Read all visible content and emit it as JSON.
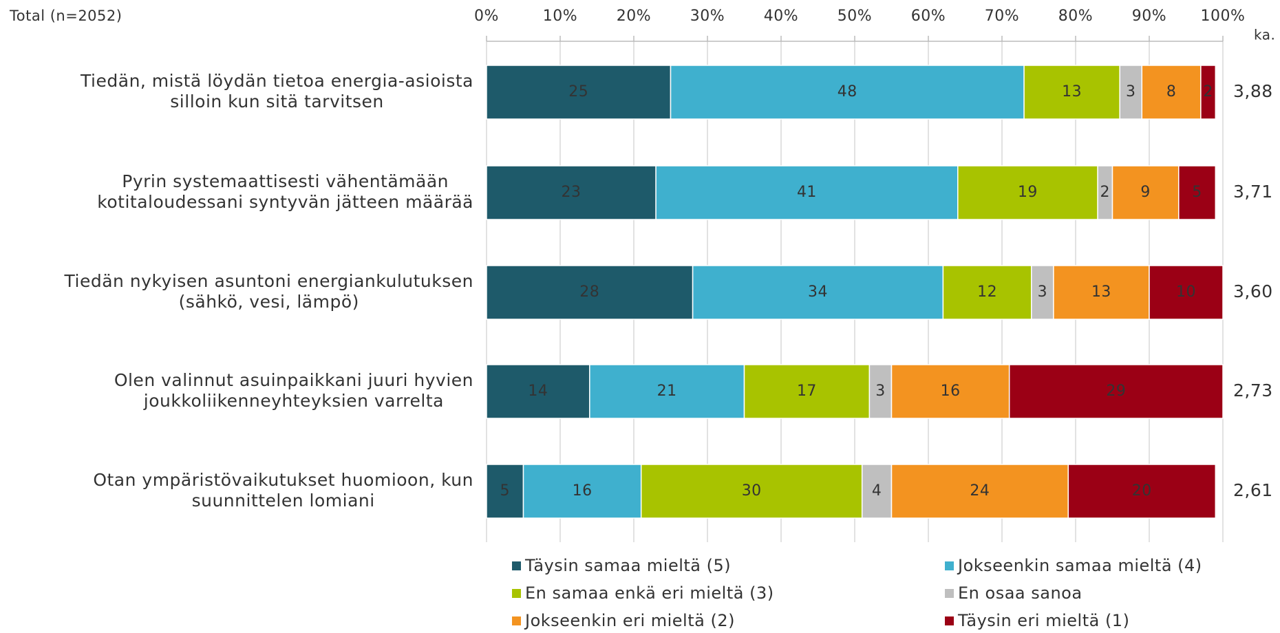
{
  "chart_data": {
    "type": "stacked-bar-horizontal",
    "subtitle": "Total (n=2052)",
    "categories": [
      "Tiedän, mistä löydän tietoa energia-asioista\nsilloin kun sitä tarvitsen",
      "Pyrin systemaattisesti vähentämään\nkotitaloudessani syntyvän jätteen määrää",
      "Tiedän nykyisen asuntoni energiankulutuksen\n(sähkö, vesi, lämpö)",
      "Olen valinnut asuinpaikkani juuri hyvien\njoukkoliikenneyhteyksien varrelta",
      "Otan ympäristövaikutukset huomioon, kun\nsuunnittelen lomiani"
    ],
    "series": [
      {
        "name": "Täysin samaa mieltä (5)",
        "color": "#1e5a6a",
        "values": [
          25,
          23,
          28,
          14,
          5
        ]
      },
      {
        "name": "Jokseenkin samaa mieltä (4)",
        "color": "#3fb0ce",
        "values": [
          48,
          41,
          34,
          21,
          16
        ]
      },
      {
        "name": "En samaa enkä eri mieltä (3)",
        "color": "#a8c300",
        "values": [
          13,
          19,
          12,
          17,
          30
        ]
      },
      {
        "name": "En osaa sanoa",
        "color": "#bfbfbf",
        "values": [
          3,
          2,
          3,
          3,
          4
        ]
      },
      {
        "name": "Jokseenkin eri mieltä (2)",
        "color": "#f39320",
        "values": [
          8,
          9,
          13,
          16,
          24
        ]
      },
      {
        "name": "Täysin eri mieltä (1)",
        "color": "#9b0015",
        "values": [
          2,
          5,
          10,
          29,
          20
        ]
      }
    ],
    "xlim": [
      0,
      100
    ],
    "xticks": [
      {
        "value": 0,
        "label": "0%"
      },
      {
        "value": 10,
        "label": "10%"
      },
      {
        "value": 20,
        "label": "20%"
      },
      {
        "value": 30,
        "label": "30%"
      },
      {
        "value": 40,
        "label": "40%"
      },
      {
        "value": 50,
        "label": "50%"
      },
      {
        "value": 60,
        "label": "60%"
      },
      {
        "value": 70,
        "label": "70%"
      },
      {
        "value": 80,
        "label": "80%"
      },
      {
        "value": 90,
        "label": "90%"
      },
      {
        "value": 100,
        "label": "100%"
      }
    ],
    "grid": true,
    "means": {
      "label": "ka.",
      "values": [
        3.88,
        3.71,
        3.6,
        2.73,
        2.61
      ],
      "value_labels": [
        "3,88",
        "3,71",
        "3,60",
        "2,73",
        "2,61"
      ]
    }
  }
}
